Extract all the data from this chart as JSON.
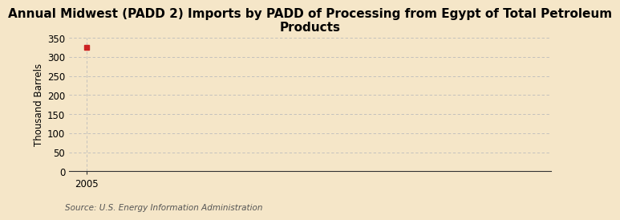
{
  "title": "Annual Midwest (PADD 2) Imports by PADD of Processing from Egypt of Total Petroleum\nProducts",
  "ylabel": "Thousand Barrels",
  "source": "Source: U.S. Energy Information Administration",
  "background_color": "#f5e6c8",
  "data_x": [
    2005
  ],
  "data_y": [
    325
  ],
  "marker_color": "#cc2222",
  "marker_size": 4,
  "ylim": [
    0,
    350
  ],
  "yticks": [
    0,
    50,
    100,
    150,
    200,
    250,
    300,
    350
  ],
  "xlim": [
    2004.3,
    2023.5
  ],
  "xticks": [
    2005
  ],
  "grid_color": "#bbbbbb",
  "vline_color": "#bbbbbb",
  "title_fontsize": 11,
  "label_fontsize": 8.5,
  "tick_fontsize": 8.5,
  "source_fontsize": 7.5
}
